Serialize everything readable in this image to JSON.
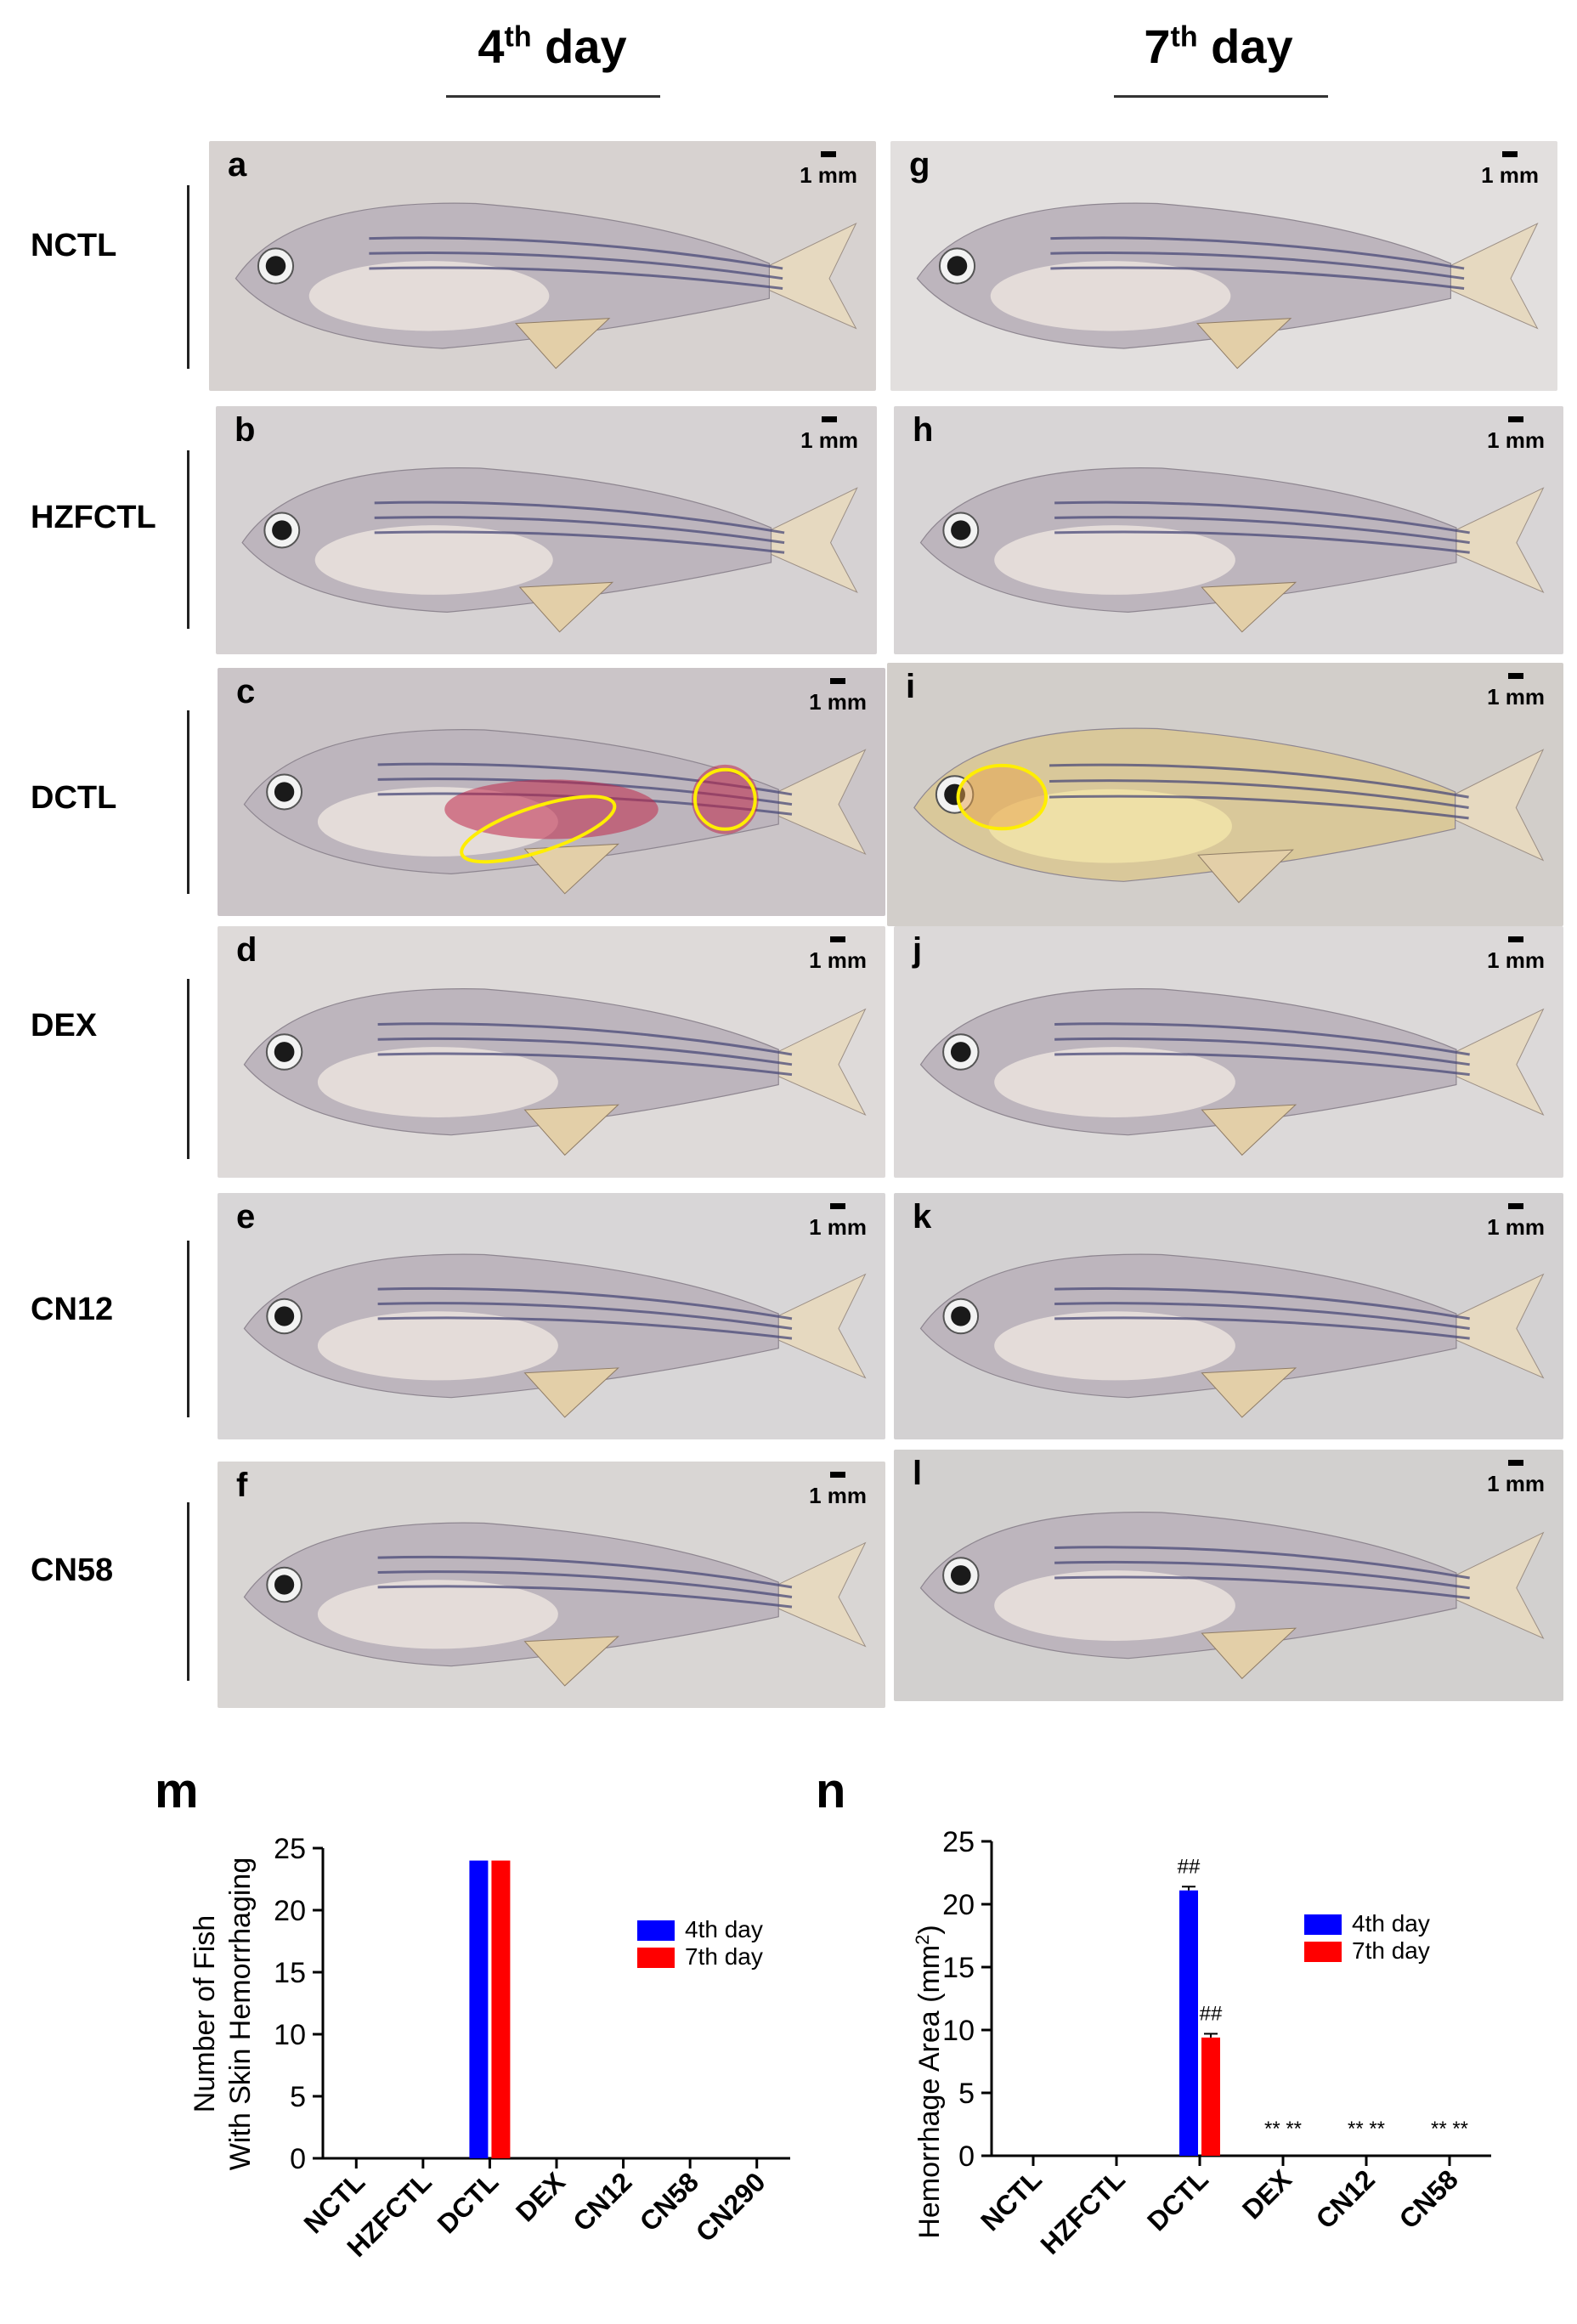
{
  "columns": [
    {
      "main": "4",
      "sup": "th",
      "rest": " day"
    },
    {
      "main": "7",
      "sup": "th",
      "rest": " day"
    }
  ],
  "rows": [
    "NCTL",
    "HZFCTL",
    "DCTL",
    "DEX",
    "CN12",
    "CN58"
  ],
  "scale_label": "1 mm",
  "panels_day4": [
    {
      "letter": "a",
      "bg": "#d7d2d0",
      "tint": "none"
    },
    {
      "letter": "b",
      "bg": "#d6d2d3",
      "tint": "none"
    },
    {
      "letter": "c",
      "bg": "#cbc5c8",
      "tint": "hemorrhage"
    },
    {
      "letter": "d",
      "bg": "#dedad9",
      "tint": "none"
    },
    {
      "letter": "e",
      "bg": "#d8d6d7",
      "tint": "none"
    },
    {
      "letter": "f",
      "bg": "#d9d6d4",
      "tint": "none"
    }
  ],
  "panels_day7": [
    {
      "letter": "g",
      "bg": "#e2dfde",
      "tint": "none"
    },
    {
      "letter": "h",
      "bg": "#d8d5d6",
      "tint": "none"
    },
    {
      "letter": "i",
      "bg": "#d2ceca",
      "tint": "yellowed"
    },
    {
      "letter": "j",
      "bg": "#dcd9d9",
      "tint": "none"
    },
    {
      "letter": "k",
      "bg": "#d3d1d2",
      "tint": "none"
    },
    {
      "letter": "l",
      "bg": "#d2d0cf",
      "tint": "none"
    }
  ],
  "colors": {
    "day4": "#0000ff",
    "day7": "#ff0000",
    "highlight": "#ffee00"
  },
  "chart_data": [
    {
      "letter": "m",
      "type": "bar",
      "ylabel_line1": "Number of Fish",
      "ylabel_line2": "With Skin Hemorrhaging",
      "categories": [
        "NCTL",
        "HZFCTL",
        "DCTL",
        "DEX",
        "CN12",
        "CN58",
        "CN290"
      ],
      "series": [
        {
          "name": "4th day",
          "values": [
            0,
            0,
            24,
            0,
            0,
            0,
            0
          ]
        },
        {
          "name": "7th day",
          "values": [
            0,
            0,
            24,
            0,
            0,
            0,
            0
          ]
        }
      ],
      "ylim": [
        0,
        25
      ],
      "yticks": [
        0,
        5,
        10,
        15,
        20,
        25
      ],
      "legend": "top-right"
    },
    {
      "letter": "n",
      "type": "bar",
      "ylabel_main": "Hemorrhage Area (mm",
      "ylabel_sup": "2",
      "ylabel_end": ")",
      "categories": [
        "NCTL",
        "HZFCTL",
        "DCTL",
        "DEX",
        "CN12",
        "CN58"
      ],
      "series": [
        {
          "name": "4th day",
          "values": [
            0,
            0,
            21.1,
            0,
            0,
            0
          ],
          "errors": [
            0,
            0,
            0.3,
            0,
            0,
            0
          ]
        },
        {
          "name": "7th day",
          "values": [
            0,
            0,
            9.4,
            0,
            0,
            0
          ],
          "errors": [
            0,
            0,
            0.3,
            0,
            0,
            0
          ]
        }
      ],
      "annotations": [
        "",
        "",
        "##",
        "** **",
        "** **",
        "** **"
      ],
      "day7_annotations": [
        "",
        "",
        "##",
        "",
        "",
        ""
      ],
      "ylim": [
        0,
        25
      ],
      "yticks": [
        0,
        5,
        10,
        15,
        20,
        25
      ],
      "legend": "top-right"
    }
  ]
}
